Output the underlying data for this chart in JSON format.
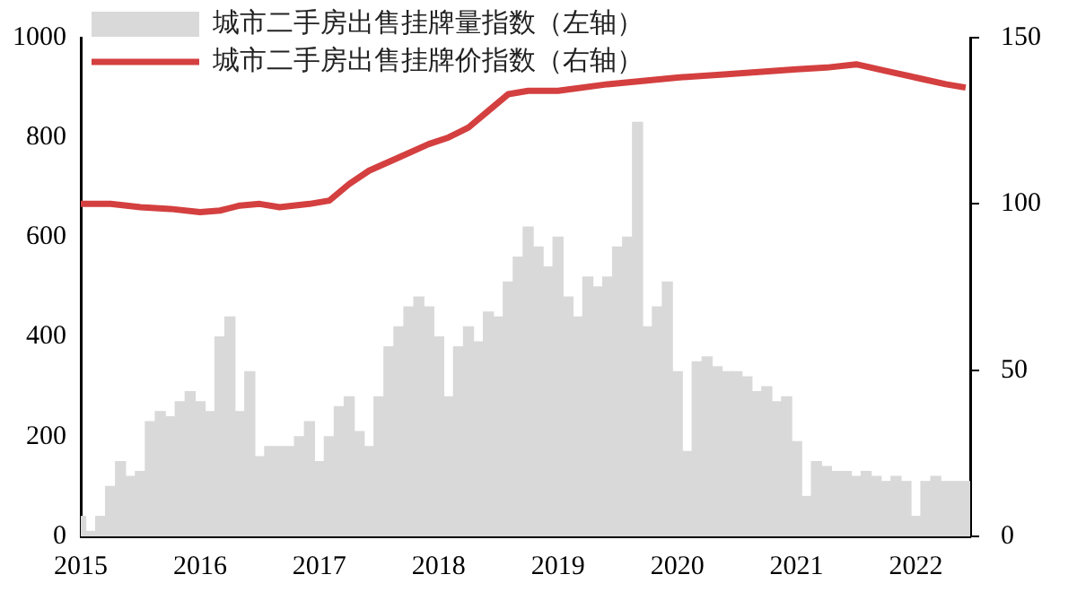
{
  "chart_data": {
    "type": "bar",
    "legend": "top left",
    "grid": false,
    "xlim": [
      "2015-01-01",
      "2022-06-15"
    ],
    "xticks": [
      {
        "value": "2015",
        "label": "2015"
      },
      {
        "value": "2016",
        "label": "2016"
      },
      {
        "value": "2017",
        "label": "2017"
      },
      {
        "value": "2018",
        "label": "2018"
      },
      {
        "value": "2019",
        "label": "2019"
      },
      {
        "value": "2020",
        "label": "2020"
      },
      {
        "value": "2021",
        "label": "2021"
      },
      {
        "value": "2022",
        "label": "2022"
      }
    ],
    "ylim": [
      0,
      1000
    ],
    "yticks": [
      0,
      200,
      400,
      600,
      800,
      1000
    ],
    "y2lim": [
      0,
      150
    ],
    "y2ticks": [
      0,
      50,
      100,
      150
    ],
    "series": [
      {
        "name": "城市二手房出售挂牌量指数（左轴）",
        "color": "#d9d9d9",
        "x": [
          "2015-01",
          "2015-02",
          "2015-03",
          "2015-04",
          "2015-05",
          "2015-06",
          "2015-07",
          "2015-08",
          "2015-09",
          "2015-10",
          "2015-11",
          "2015-12",
          "2016-01",
          "2016-02",
          "2016-03",
          "2016-04",
          "2016-05",
          "2016-06",
          "2016-07",
          "2016-08",
          "2016-09",
          "2016-10",
          "2016-11",
          "2016-12",
          "2017-01",
          "2017-02",
          "2017-03",
          "2017-04",
          "2017-05",
          "2017-06",
          "2017-07",
          "2017-08",
          "2017-09",
          "2017-10",
          "2017-11",
          "2017-12",
          "2018-01",
          "2018-02",
          "2018-03",
          "2018-04",
          "2018-05",
          "2018-06",
          "2018-07",
          "2018-08",
          "2018-09",
          "2018-10",
          "2018-11",
          "2018-12",
          "2019-01",
          "2019-02",
          "2019-03",
          "2019-04",
          "2019-05",
          "2019-06",
          "2019-07",
          "2019-08",
          "2019-09",
          "2019-10",
          "2019-11",
          "2019-12",
          "2020-01",
          "2020-02",
          "2020-03",
          "2020-04",
          "2020-05",
          "2020-06",
          "2020-07",
          "2020-08",
          "2020-09",
          "2020-10",
          "2020-11",
          "2020-12",
          "2021-01",
          "2021-02",
          "2021-03",
          "2021-04",
          "2021-05",
          "2021-06",
          "2021-07",
          "2021-08",
          "2021-09",
          "2021-10",
          "2021-11",
          "2021-12",
          "2022-01",
          "2022-02",
          "2022-03",
          "2022-04",
          "2022-05",
          "2022-06"
        ],
        "values": [
          40,
          10,
          40,
          100,
          150,
          120,
          130,
          230,
          250,
          240,
          270,
          290,
          270,
          250,
          400,
          440,
          250,
          330,
          160,
          180,
          180,
          180,
          200,
          230,
          150,
          200,
          260,
          280,
          210,
          180,
          280,
          380,
          420,
          460,
          480,
          460,
          400,
          280,
          380,
          420,
          390,
          450,
          440,
          510,
          560,
          620,
          580,
          540,
          600,
          480,
          440,
          520,
          500,
          520,
          580,
          600,
          830,
          420,
          460,
          510,
          330,
          170,
          350,
          360,
          340,
          330,
          330,
          320,
          290,
          300,
          270,
          280,
          190,
          80,
          150,
          140,
          130,
          130,
          120,
          130,
          120,
          110,
          120,
          110,
          40,
          110,
          120,
          110,
          110,
          110
        ]
      },
      {
        "name": "城市二手房出售挂牌价指数（右轴）",
        "type": "line",
        "axis": "y2",
        "color": "#d43f3f",
        "marker": "none",
        "x": [
          "2015-01",
          "2015-04",
          "2015-07",
          "2015-10",
          "2016-01",
          "2016-03",
          "2016-05",
          "2016-07",
          "2016-09",
          "2016-12",
          "2017-02",
          "2017-04",
          "2017-06",
          "2017-09",
          "2017-12",
          "2018-02",
          "2018-04",
          "2018-06",
          "2018-08",
          "2018-10",
          "2019-01",
          "2019-06",
          "2020-01",
          "2020-06",
          "2021-01",
          "2021-04",
          "2021-07",
          "2021-10",
          "2022-01",
          "2022-04",
          "2022-06"
        ],
        "values": [
          100,
          100,
          99,
          98.5,
          97.5,
          98,
          99.5,
          100,
          99,
          100,
          101,
          106,
          110,
          114,
          118,
          120,
          123,
          128,
          133,
          134,
          134,
          136,
          138,
          139,
          140.5,
          141,
          142,
          140,
          138,
          136,
          135
        ]
      }
    ]
  }
}
